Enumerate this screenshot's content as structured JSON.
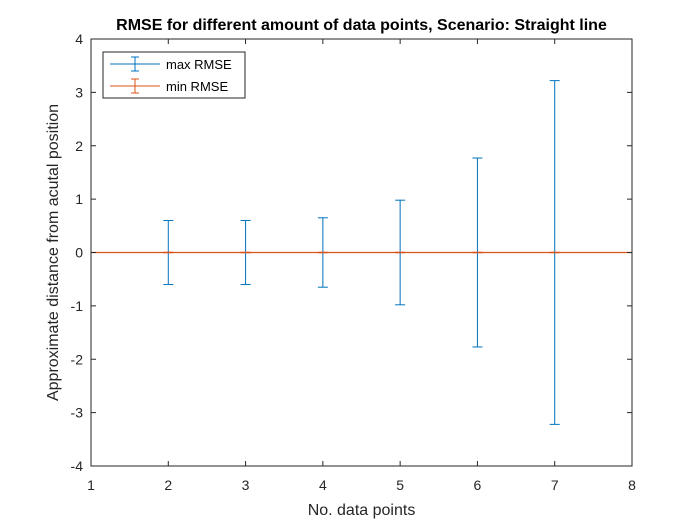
{
  "chart_data": {
    "type": "errorbar",
    "title": "RMSE for different amount of data points, Scenario: Straight line",
    "xlabel": "No. data points",
    "ylabel": "Approximate distance from acutal position",
    "xlim": [
      1,
      8
    ],
    "ylim": [
      -4,
      4
    ],
    "xticks": [
      "1",
      "2",
      "3",
      "4",
      "5",
      "6",
      "7",
      "8"
    ],
    "yticks": [
      "4",
      "3",
      "2",
      "1",
      "0",
      "-1",
      "-2",
      "-3",
      "-4"
    ],
    "grid": false,
    "legend_position": "top-left",
    "colors": {
      "max": "#0072BD",
      "min": "#D95319",
      "axis": "#262626"
    },
    "series": [
      {
        "name": "max RMSE",
        "x": [
          2,
          3,
          4,
          5,
          6,
          7
        ],
        "y": [
          0,
          0,
          0,
          0,
          0,
          0
        ],
        "error": [
          0.6,
          0.6,
          0.65,
          0.98,
          1.77,
          3.22
        ]
      },
      {
        "name": "min RMSE",
        "x": [
          2,
          3,
          4,
          5,
          6,
          7
        ],
        "y": [
          0,
          0,
          0,
          0,
          0,
          0
        ],
        "error": [
          0,
          0,
          0,
          0,
          0,
          0
        ]
      }
    ]
  }
}
